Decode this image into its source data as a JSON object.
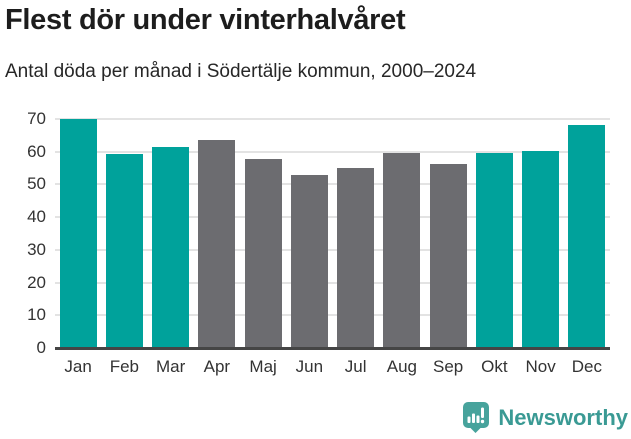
{
  "header": {
    "title": "Flest dör under vinterhalvåret",
    "subtitle": "Antal döda per månad i Södertälje kommun, 2000–2024"
  },
  "chart_data": {
    "type": "bar",
    "title": "Flest dör under vinterhalvåret",
    "subtitle": "Antal döda per månad i Södertälje kommun, 2000–2024",
    "categories": [
      "Jan",
      "Feb",
      "Mar",
      "Apr",
      "Maj",
      "Jun",
      "Jul",
      "Aug",
      "Sep",
      "Okt",
      "Nov",
      "Dec"
    ],
    "values": [
      70,
      59.4,
      61.5,
      63.7,
      57.7,
      53,
      55.1,
      59.5,
      56.1,
      59.6,
      60.2,
      68.2
    ],
    "highlighted_winter_months": [
      true,
      true,
      true,
      false,
      false,
      false,
      false,
      false,
      false,
      true,
      true,
      true
    ],
    "colors": {
      "winter_bar": "#00a29b",
      "summer_bar": "#6c6c70",
      "gridline": "#e3e3e3",
      "axis_line": "#454545",
      "tick_label": "#333333"
    },
    "xlabel": "",
    "ylabel": "",
    "yticks": [
      0,
      10,
      20,
      30,
      40,
      50,
      60,
      70
    ],
    "ylim": [
      0,
      70
    ],
    "grid": true,
    "legend": false
  },
  "footer": {
    "brand": "Newsworthy",
    "logo_icon": "bar-chart-speech-bubble-icon",
    "brand_color": "#3a9a94"
  }
}
